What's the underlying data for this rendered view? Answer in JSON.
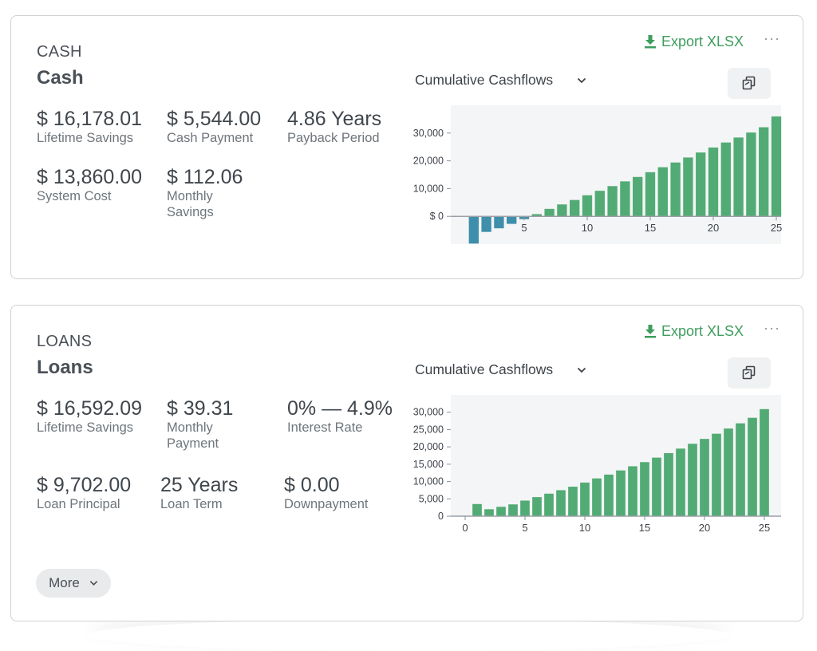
{
  "cards": {
    "cash": {
      "eyebrow": "CASH",
      "title": "Cash",
      "export_label": "Export XLSX",
      "more_label": "···",
      "chart_select_label": "Cumulative Cashflows",
      "stats": {
        "lifetime_savings": {
          "value": "$ 16,178.01",
          "label": "Lifetime Savings"
        },
        "cash_payment": {
          "value": "$ 5,544.00",
          "label": "Cash Payment"
        },
        "payback_period": {
          "value": "4.86 Years",
          "label": "Payback Period"
        },
        "system_cost": {
          "value": "$ 13,860.00",
          "label": "System Cost"
        },
        "monthly_savings": {
          "value": "$ 112.06",
          "label_line1": "Monthly",
          "label_line2": "Savings"
        }
      }
    },
    "loans": {
      "eyebrow": "LOANS",
      "title": "Loans",
      "export_label": "Export XLSX",
      "more_label": "···",
      "chart_select_label": "Cumulative Cashflows",
      "more_button_label": "More",
      "stats": {
        "lifetime_savings": {
          "value": "$ 16,592.09",
          "label": "Lifetime Savings"
        },
        "monthly_payment": {
          "value": "$ 39.31",
          "label_line1": "Monthly",
          "label_line2": "Payment"
        },
        "interest_rate": {
          "value": "0% — 4.9%",
          "label": "Interest Rate"
        },
        "loan_principal": {
          "value": "$ 9,702.00",
          "label": "Loan Principal"
        },
        "loan_term": {
          "value": "25 Years",
          "label": "Loan Term"
        },
        "downpayment": {
          "value": "$ 0.00",
          "label": "Downpayment"
        }
      }
    }
  },
  "colors": {
    "positive_bar": "#52ab74",
    "negative_bar": "#3e8fab",
    "chart_bg": "#f4f5f6",
    "accent": "#3e9d5e"
  },
  "chart_data": [
    {
      "type": "bar",
      "title": "",
      "ylim": [
        -10000,
        40000
      ],
      "yticks": [
        0,
        10000,
        20000,
        30000
      ],
      "ytick_labels": [
        "$ 0",
        "10,000",
        "20,000",
        "30,000"
      ],
      "xticks": [
        5,
        10,
        15,
        20,
        25
      ],
      "x": [
        1,
        2,
        3,
        4,
        5,
        6,
        7,
        8,
        9,
        10,
        11,
        12,
        13,
        14,
        15,
        16,
        17,
        18,
        19,
        20,
        21,
        22,
        23,
        24,
        25
      ],
      "values": [
        -9800,
        -5600,
        -4300,
        -2700,
        -1000,
        800,
        2700,
        4300,
        5900,
        7600,
        9200,
        10900,
        12600,
        14200,
        15900,
        17700,
        19400,
        21200,
        23000,
        24800,
        26600,
        28400,
        30200,
        32100,
        36000
      ]
    },
    {
      "type": "bar",
      "title": "",
      "ylim": [
        0,
        35000
      ],
      "yticks": [
        0,
        5000,
        10000,
        15000,
        20000,
        25000,
        30000
      ],
      "ytick_labels": [
        "0",
        "5,000",
        "10,000",
        "15,000",
        "20,000",
        "25,000",
        "30,000"
      ],
      "yunit_label": "$",
      "xticks": [
        0,
        5,
        10,
        15,
        20,
        25
      ],
      "x": [
        1,
        2,
        3,
        4,
        5,
        6,
        7,
        8,
        9,
        10,
        11,
        12,
        13,
        14,
        15,
        16,
        17,
        18,
        19,
        20,
        21,
        22,
        23,
        24,
        25
      ],
      "values": [
        3500,
        2000,
        2700,
        3400,
        4500,
        5500,
        6500,
        7500,
        8500,
        9700,
        10900,
        12000,
        13200,
        14400,
        15600,
        16900,
        18200,
        19500,
        20900,
        22300,
        23800,
        25300,
        26800,
        28400,
        30900
      ]
    }
  ]
}
